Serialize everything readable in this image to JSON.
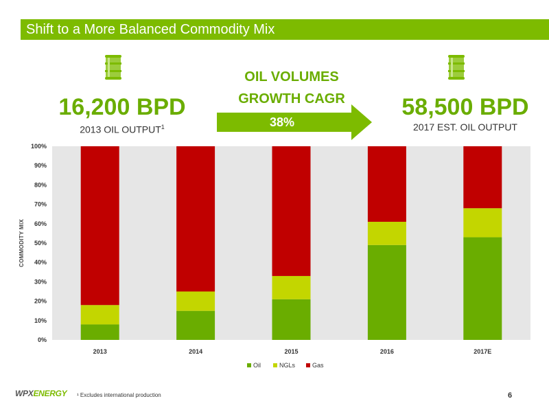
{
  "title": "Shift to a More Balanced Commodity Mix",
  "left_stat": {
    "value": "16,200 BPD",
    "label": "2013 OIL OUTPUT",
    "sup": "1"
  },
  "right_stat": {
    "value": "58,500 BPD",
    "label": "2017 EST. OIL OUTPUT"
  },
  "cagr": {
    "line1": "OIL VOLUMES",
    "line2": "GROWTH CAGR",
    "value": "38%"
  },
  "icons": [
    "oil-barrel-icon",
    "oil-barrel-icon"
  ],
  "colors": {
    "accent": "#7dbb00",
    "oil": "#6aad00",
    "ngls": "#c3d600",
    "gas": "#c00000",
    "plot_bg": "#e6e6e6"
  },
  "chart_data": {
    "type": "bar",
    "stacked": true,
    "categories": [
      "2013",
      "2014",
      "2015",
      "2016",
      "2017E"
    ],
    "series": [
      {
        "name": "Oil",
        "values": [
          8,
          15,
          21,
          49,
          53
        ]
      },
      {
        "name": "NGLs",
        "values": [
          10,
          10,
          12,
          12,
          15
        ]
      },
      {
        "name": "Gas",
        "values": [
          82,
          75,
          67,
          39,
          32
        ]
      }
    ],
    "ylabel": "COMMODITY MIX",
    "ylim": [
      0,
      100
    ],
    "yticks": [
      "0%",
      "10%",
      "20%",
      "30%",
      "40%",
      "50%",
      "60%",
      "70%",
      "80%",
      "90%",
      "100%"
    ],
    "legend_position": "bottom"
  },
  "footer": {
    "logo_a": "WPX",
    "logo_b": "ENERGY",
    "footnote": "¹ Excludes international production",
    "page": "6"
  }
}
